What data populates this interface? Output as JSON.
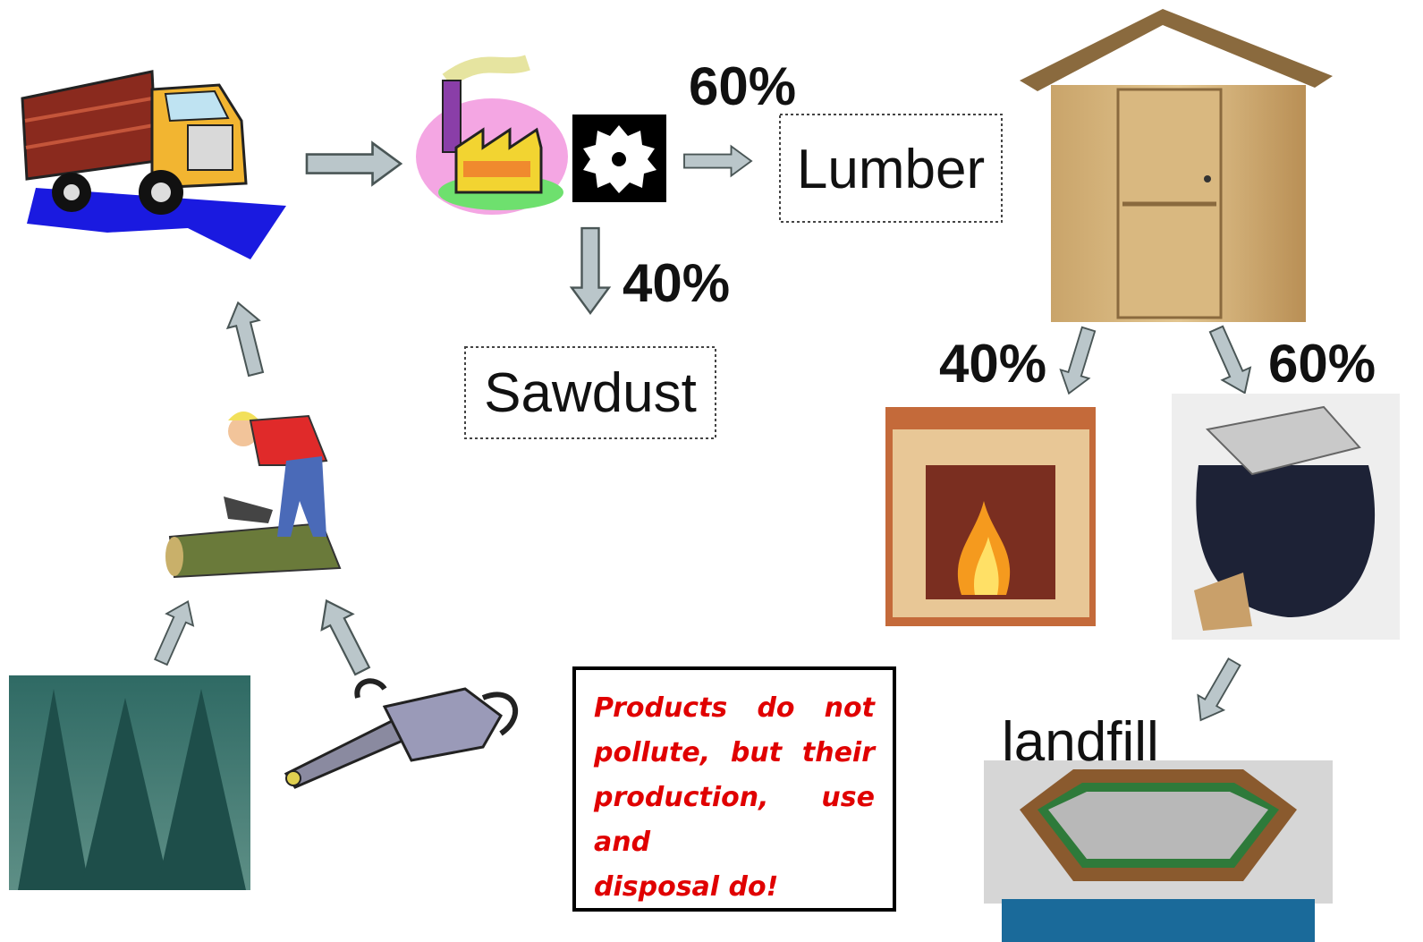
{
  "mill": {
    "lumber_share": "60%",
    "lumber": "Lumber",
    "sawdust_share": "40%",
    "sawdust": "Sawdust"
  },
  "disposal": {
    "burned_share": "40%",
    "waste_share": "60%",
    "landfill": "landfill"
  },
  "note": {
    "lines": [
      "Products do not pollute, but their production, use and",
      "disposal do!"
    ]
  }
}
